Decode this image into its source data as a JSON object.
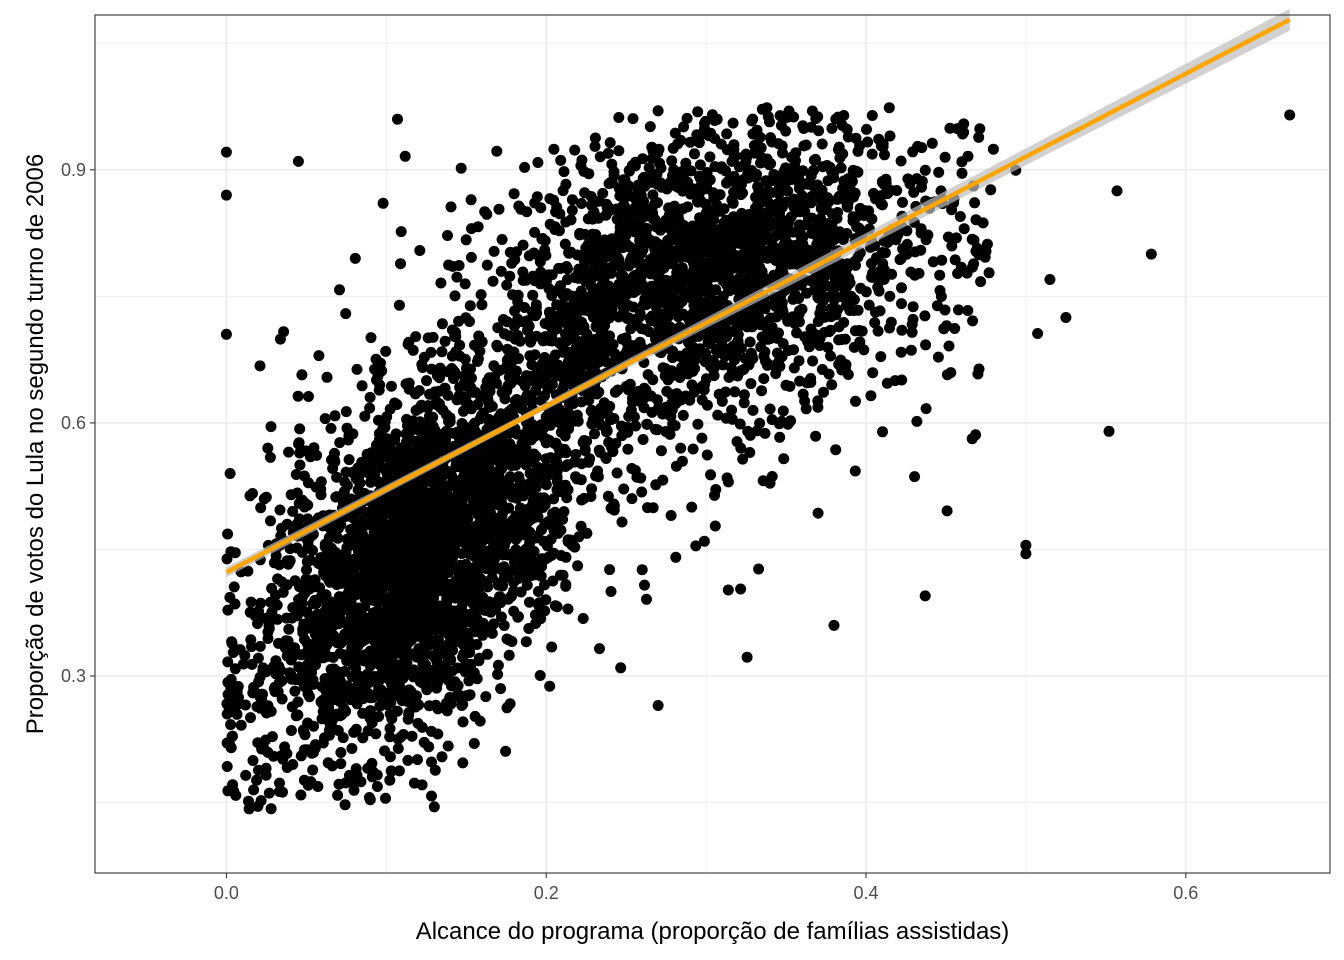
{
  "chart_data": {
    "type": "scatter",
    "title": "",
    "xlabel": "Alcance do programa (proporção de famílias assistidas)",
    "ylabel": "Proporção de votos do Lula no segundo turno de 2006",
    "xlim": [
      -0.0822,
      0.6902
    ],
    "ylim": [
      0.0665,
      1.0835
    ],
    "x_ticks": [
      0.0,
      0.2,
      0.4,
      0.6
    ],
    "x_tick_labels": [
      "0.0",
      "0.2",
      "0.4",
      "0.6"
    ],
    "y_ticks": [
      0.3,
      0.6,
      0.9
    ],
    "y_tick_labels": [
      "0.3",
      "0.6",
      "0.9"
    ],
    "grid": true,
    "legend": "none",
    "colors": {
      "points": "#000000",
      "fit_line": "#FFA500",
      "ci_band": "#BEBEBE",
      "grid": "#EBEBEB",
      "panel_border": "#333333"
    },
    "fit": {
      "method": "linear",
      "x_range": [
        0.0,
        0.665
      ],
      "intercept": 0.423,
      "slope": 0.985,
      "ci_halfwidth_at_ends": 0.01
    },
    "points_sample": {
      "note_count_drawn": 24,
      "x": [
        0.0,
        0.0,
        0.0,
        0.003,
        0.017,
        0.078,
        0.107,
        0.13,
        0.155,
        0.27,
        0.299,
        0.38,
        0.437,
        0.5,
        0.5,
        0.515,
        0.525,
        0.552,
        0.557,
        0.665,
        0.27,
        0.12,
        0.33,
        0.045
      ],
      "y": [
        0.921,
        0.87,
        0.705,
        0.215,
        0.165,
        0.135,
        0.96,
        0.145,
        0.22,
        0.97,
        0.955,
        0.36,
        0.395,
        0.455,
        0.445,
        0.77,
        0.725,
        0.59,
        0.875,
        0.965,
        0.265,
        0.5,
        0.76,
        0.91
      ]
    }
  }
}
